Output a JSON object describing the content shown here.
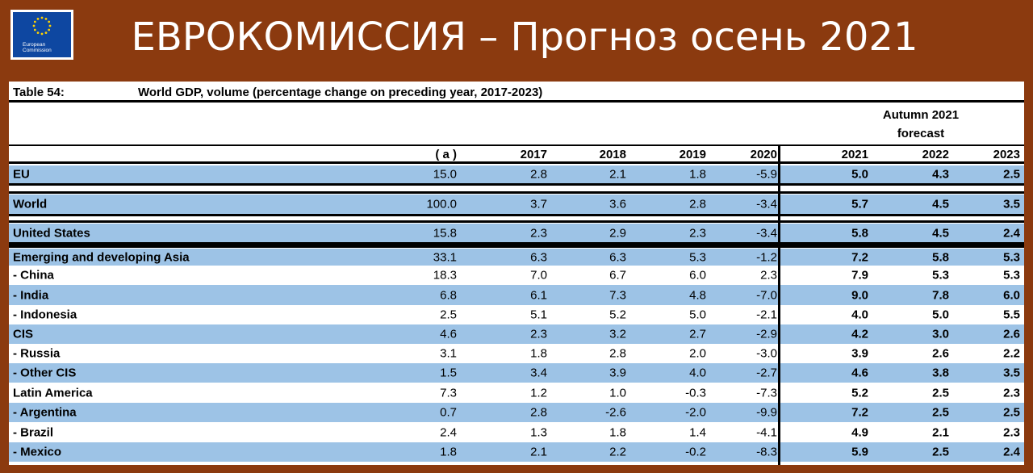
{
  "slide_title": "ЕВРОКОМИССИЯ – Прогноз осень 2021",
  "logo": {
    "line1": "European",
    "line2": "Commission",
    "icon": "eu-stars-logo"
  },
  "table": {
    "name": "Table 54:",
    "title": "World GDP, volume (percentage change on preceding year, 2017-2023)",
    "forecast_line1": "Autumn 2021",
    "forecast_line2": "forecast",
    "columns": [
      "( a )",
      "2017",
      "2018",
      "2019",
      "2020",
      "2021",
      "2022",
      "2023"
    ],
    "rows": [
      {
        "label": "EU",
        "values": [
          "15.0",
          "2.8",
          "2.1",
          "1.8",
          "-5.9",
          "5.0",
          "4.3",
          "2.5"
        ]
      },
      {
        "label": "World",
        "values": [
          "100.0",
          "3.7",
          "3.6",
          "2.8",
          "-3.4",
          "5.7",
          "4.5",
          "3.5"
        ]
      },
      {
        "label": "United States",
        "values": [
          "15.8",
          "2.3",
          "2.9",
          "2.3",
          "-3.4",
          "5.8",
          "4.5",
          "2.4"
        ]
      },
      {
        "label": "Emerging and developing Asia",
        "values": [
          "33.1",
          "6.3",
          "6.3",
          "5.3",
          "-1.2",
          "7.2",
          "5.8",
          "5.3"
        ]
      },
      {
        "label": "- China",
        "values": [
          "18.3",
          "7.0",
          "6.7",
          "6.0",
          "2.3",
          "7.9",
          "5.3",
          "5.3"
        ]
      },
      {
        "label": "- India",
        "values": [
          "6.8",
          "6.1",
          "7.3",
          "4.8",
          "-7.0",
          "9.0",
          "7.8",
          "6.0"
        ]
      },
      {
        "label": "- Indonesia",
        "values": [
          "2.5",
          "5.1",
          "5.2",
          "5.0",
          "-2.1",
          "4.0",
          "5.0",
          "5.5"
        ]
      },
      {
        "label": "CIS",
        "values": [
          "4.6",
          "2.3",
          "3.2",
          "2.7",
          "-2.9",
          "4.2",
          "3.0",
          "2.6"
        ]
      },
      {
        "label": "- Russia",
        "values": [
          "3.1",
          "1.8",
          "2.8",
          "2.0",
          "-3.0",
          "3.9",
          "2.6",
          "2.2"
        ]
      },
      {
        "label": "- Other CIS",
        "values": [
          "1.5",
          "3.4",
          "3.9",
          "4.0",
          "-2.7",
          "4.6",
          "3.8",
          "3.5"
        ]
      },
      {
        "label": "Latin America",
        "values": [
          "7.3",
          "1.2",
          "1.0",
          "-0.3",
          "-7.3",
          "5.2",
          "2.5",
          "2.3"
        ]
      },
      {
        "label": "- Argentina",
        "values": [
          "0.7",
          "2.8",
          "-2.6",
          "-2.0",
          "-9.9",
          "7.2",
          "2.5",
          "2.5"
        ]
      },
      {
        "label": "- Brazil",
        "values": [
          "2.4",
          "1.3",
          "1.8",
          "1.4",
          "-4.1",
          "4.9",
          "2.1",
          "2.3"
        ]
      },
      {
        "label": "- Mexico",
        "values": [
          "1.8",
          "2.1",
          "2.2",
          "-0.2",
          "-8.3",
          "5.9",
          "2.5",
          "2.4"
        ]
      }
    ]
  },
  "colors": {
    "background": "#8b3a0f",
    "row_highlight": "#9dc3e6",
    "logo_blue": "#0e47a1"
  }
}
